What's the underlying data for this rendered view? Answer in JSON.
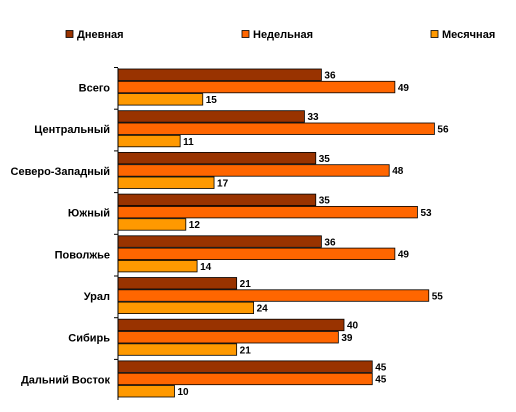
{
  "chart_data": {
    "type": "bar",
    "orientation": "horizontal",
    "categories": [
      "Всего",
      "Центральный",
      "Северо-Западный",
      "Южный",
      "Поволжье",
      "Урал",
      "Сибирь",
      "Дальний Восток"
    ],
    "series": [
      {
        "name": "Дневная",
        "color": "#993300",
        "values": [
          36,
          33,
          35,
          35,
          36,
          21,
          40,
          45
        ]
      },
      {
        "name": "Недельная",
        "color": "#FF6600",
        "values": [
          49,
          56,
          48,
          53,
          49,
          55,
          39,
          45
        ]
      },
      {
        "name": "Месячная",
        "color": "#FF9900",
        "values": [
          15,
          11,
          17,
          12,
          14,
          24,
          21,
          10
        ]
      }
    ],
    "xlim": [
      0,
      60
    ],
    "legend": "top",
    "grid": false,
    "data_labels": true
  }
}
